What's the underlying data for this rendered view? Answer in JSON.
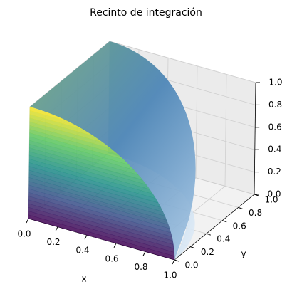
{
  "chart_data": {
    "type": "surface3d",
    "title": "Recinto de integración",
    "xlabel": "x",
    "ylabel": "y",
    "xlim": [
      0,
      1
    ],
    "ylim": [
      0,
      1
    ],
    "zlim": [
      0,
      1
    ],
    "xticks": [
      {
        "value": 0,
        "label": "0.0"
      },
      {
        "value": 0.2,
        "label": "0.2"
      },
      {
        "value": 0.4,
        "label": "0.4"
      },
      {
        "value": 0.6,
        "label": "0.6"
      },
      {
        "value": 0.8,
        "label": "0.8"
      },
      {
        "value": 1,
        "label": "1.0"
      }
    ],
    "yticks": [
      {
        "value": 0,
        "label": "0.0"
      },
      {
        "value": 0.2,
        "label": "0.2"
      },
      {
        "value": 0.4,
        "label": "0.4"
      },
      {
        "value": 0.6,
        "label": "0.6"
      },
      {
        "value": 0.8,
        "label": "0.8"
      },
      {
        "value": 1,
        "label": "1.0"
      }
    ],
    "zticks": [
      {
        "value": 0,
        "label": "0.0"
      },
      {
        "value": 0.2,
        "label": "0.2"
      },
      {
        "value": 0.4,
        "label": "0.4"
      },
      {
        "value": 0.6,
        "label": "0.6"
      },
      {
        "value": 0.8,
        "label": "0.8"
      },
      {
        "value": 1,
        "label": "1.0"
      }
    ],
    "grid": true
  }
}
